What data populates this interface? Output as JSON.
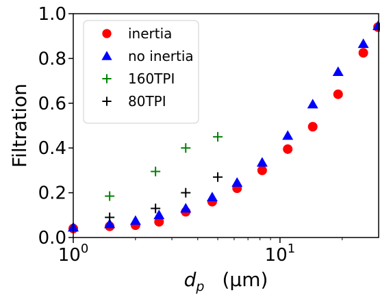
{
  "chart_data": {
    "type": "scatter",
    "xscale": "log",
    "xlim": [
      1,
      30
    ],
    "ylim": [
      0,
      1
    ],
    "grid": false,
    "legend_position": "top-left",
    "xlabel": {
      "var": "d",
      "sub": "p",
      "unit": "(µm)"
    },
    "ylabel": "Filtration",
    "xticks": [
      {
        "value": 1,
        "base": "10",
        "exp": "0"
      },
      {
        "value": 10,
        "base": "10",
        "exp": "1"
      }
    ],
    "yticks": [
      {
        "value": 0.0,
        "label": "0.0"
      },
      {
        "value": 0.2,
        "label": "0.2"
      },
      {
        "value": 0.4,
        "label": "0.4"
      },
      {
        "value": 0.6,
        "label": "0.6"
      },
      {
        "value": 0.8,
        "label": "0.8"
      },
      {
        "value": 1.0,
        "label": "1.0"
      }
    ],
    "series": [
      {
        "name": "inertia",
        "marker": "circle",
        "color": "#ff0000",
        "x": [
          1.0,
          1.5,
          2.0,
          2.6,
          3.5,
          4.7,
          6.2,
          8.2,
          10.9,
          14.4,
          19.1,
          25.3,
          29.8
        ],
        "y": [
          0.04,
          0.05,
          0.055,
          0.07,
          0.115,
          0.16,
          0.22,
          0.3,
          0.395,
          0.495,
          0.64,
          0.825,
          0.94
        ]
      },
      {
        "name": "no inertia",
        "marker": "triangle",
        "color": "#0000ff",
        "x": [
          1.0,
          1.5,
          2.0,
          2.6,
          3.5,
          4.7,
          6.2,
          8.2,
          10.9,
          14.4,
          19.1,
          25.3,
          29.8
        ],
        "y": [
          0.045,
          0.06,
          0.075,
          0.1,
          0.13,
          0.18,
          0.245,
          0.335,
          0.455,
          0.595,
          0.74,
          0.865,
          0.945
        ]
      },
      {
        "name": "160TPI",
        "marker": "plus",
        "color": "#008000",
        "x": [
          1.5,
          2.5,
          3.5,
          5.0
        ],
        "y": [
          0.185,
          0.295,
          0.4,
          0.45
        ]
      },
      {
        "name": "80TPI",
        "marker": "plus",
        "color": "#000000",
        "x": [
          1.5,
          2.5,
          3.5,
          5.0
        ],
        "y": [
          0.09,
          0.13,
          0.2,
          0.27
        ]
      }
    ]
  }
}
